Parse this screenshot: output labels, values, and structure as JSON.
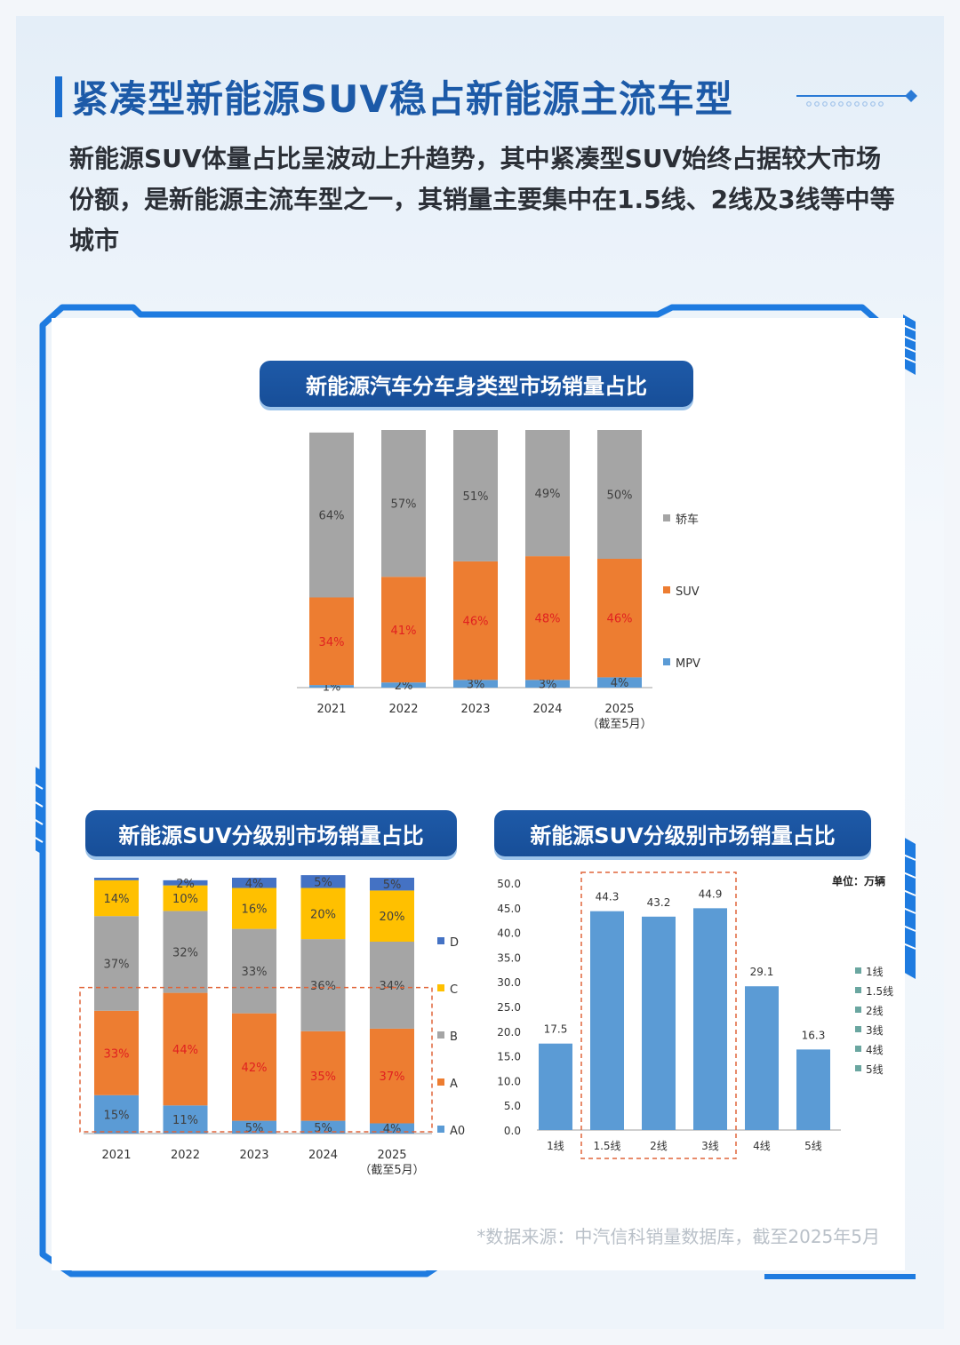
{
  "title": "紧凑型新能源SUV稳占新能源主流车型",
  "intro": "新能源SUV体量占比呈波动上升趋势，其中紧凑型SUV始终占据较大市场份额，是新能源主流车型之一，其销量主要集中在1.5线、2线及3线等中等城市",
  "source": "*数据来源：中汽信科销量数据库，截至2025年5月",
  "colors": {
    "title_blue": "#1c5aa8",
    "pill_blue": "#1e5aa8",
    "gray": "#a5a5a5",
    "orange": "#ed7d31",
    "blue": "#5b9bd5",
    "yellow": "#ffc000",
    "navy": "#4472c4",
    "red_label": "#e02020",
    "highlight_border": "#e0653a"
  },
  "chart_data": [
    {
      "type": "bar",
      "stacked": true,
      "title": "新能源汽车分车身类型市场销量占比",
      "categories": [
        "2021",
        "2022",
        "2023",
        "2024",
        "2025"
      ],
      "category_sublabels": [
        "",
        "",
        "",
        "",
        "（截至5月）"
      ],
      "series": [
        {
          "name": "MPV",
          "values": [
            1,
            2,
            3,
            3,
            4
          ],
          "labels": [
            "1%",
            "2%",
            "3%",
            "3%",
            "4%"
          ],
          "color": "#5b9bd5"
        },
        {
          "name": "SUV",
          "values": [
            34,
            41,
            46,
            48,
            46
          ],
          "labels": [
            "34%",
            "41%",
            "46%",
            "48%",
            "46%"
          ],
          "color": "#ed7d31",
          "label_color": "#e02020"
        },
        {
          "name": "轿车",
          "values": [
            64,
            57,
            51,
            49,
            50
          ],
          "labels": [
            "64%",
            "57%",
            "51%",
            "49%",
            "50%"
          ],
          "color": "#a5a5a5"
        }
      ],
      "legend": [
        "轿车",
        "SUV",
        "MPV"
      ],
      "ylim": [
        0,
        100
      ],
      "grid": false
    },
    {
      "type": "bar",
      "stacked": true,
      "title": "新能源SUV分级别市场销量占比",
      "categories": [
        "2021",
        "2022",
        "2023",
        "2024",
        "2025"
      ],
      "category_sublabels": [
        "",
        "",
        "",
        "",
        "（截至5月）"
      ],
      "series": [
        {
          "name": "A0",
          "values": [
            15,
            11,
            5,
            5,
            4
          ],
          "labels": [
            "15%",
            "11%",
            "5%",
            "5%",
            "4%"
          ],
          "color": "#5b9bd5"
        },
        {
          "name": "A",
          "values": [
            33,
            44,
            42,
            35,
            37
          ],
          "labels": [
            "33%",
            "44%",
            "42%",
            "35%",
            "37%"
          ],
          "color": "#ed7d31",
          "label_color": "#e02020"
        },
        {
          "name": "B",
          "values": [
            37,
            32,
            33,
            36,
            34
          ],
          "labels": [
            "37%",
            "32%",
            "33%",
            "36%",
            "34%"
          ],
          "color": "#a5a5a5"
        },
        {
          "name": "C",
          "values": [
            14,
            10,
            16,
            20,
            20
          ],
          "labels": [
            "14%",
            "10%",
            "16%",
            "20%",
            "20%"
          ],
          "color": "#ffc000"
        },
        {
          "name": "D",
          "values": [
            1,
            2,
            4,
            5,
            5
          ],
          "labels": [
            "",
            "2%",
            "4%",
            "5%",
            "5%"
          ],
          "color": "#4472c4"
        }
      ],
      "legend": [
        "D",
        "C",
        "B",
        "A",
        "A0"
      ],
      "highlight": "A0 + A",
      "ylim": [
        0,
        100
      ],
      "grid": false
    },
    {
      "type": "bar",
      "title": "新能源SUV分级别市场销量占比",
      "unit_label": "单位：万辆",
      "categories": [
        "1线",
        "1.5线",
        "2线",
        "3线",
        "4线",
        "5线"
      ],
      "values": [
        17.5,
        44.3,
        43.2,
        44.9,
        29.1,
        16.3
      ],
      "value_labels": [
        "17.5",
        "44.3",
        "43.2",
        "44.9",
        "29.1",
        "16.3"
      ],
      "yticks": [
        "0.0",
        "5.0",
        "10.0",
        "15.0",
        "20.0",
        "25.0",
        "30.0",
        "35.0",
        "40.0",
        "45.0",
        "50.0"
      ],
      "legend": [
        "1线",
        "1.5线",
        "2线",
        "3线",
        "4线",
        "5线"
      ],
      "highlight": [
        "1.5线",
        "2线",
        "3线"
      ],
      "ylim": [
        0,
        50
      ],
      "color": "#5b9bd5",
      "grid": false
    }
  ]
}
